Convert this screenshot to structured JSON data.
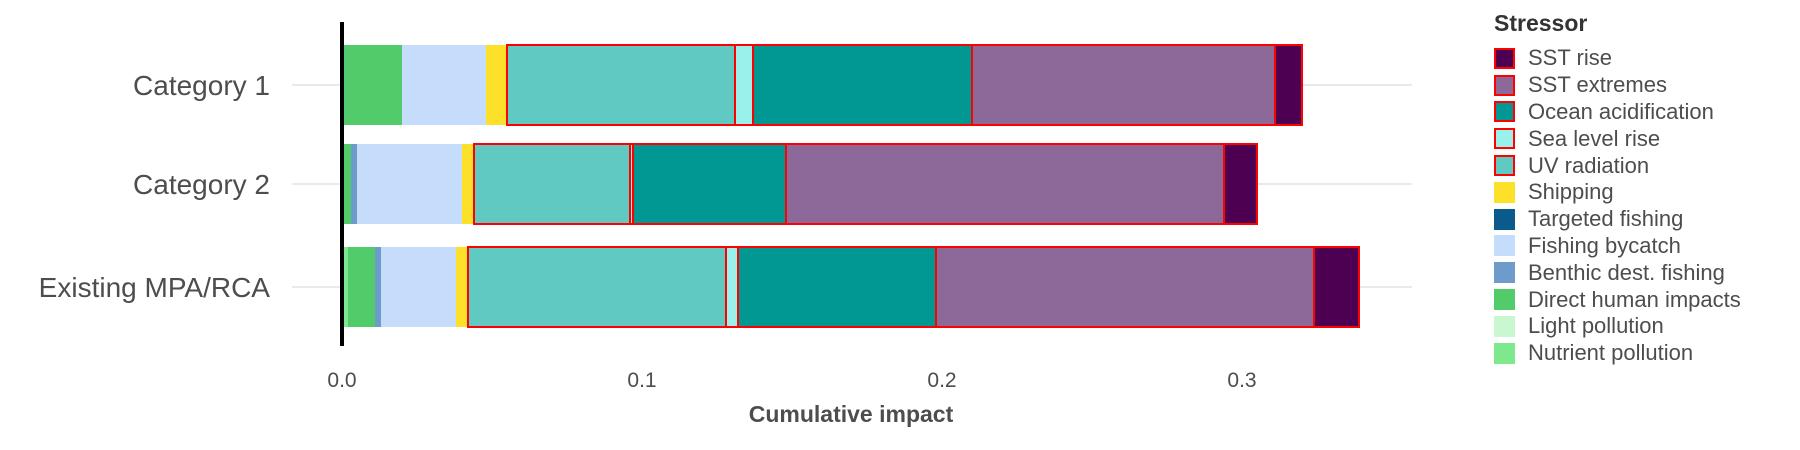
{
  "chart_data": {
    "type": "bar",
    "orientation": "horizontal",
    "stacked": true,
    "xlabel": "Cumulative impact",
    "ylabel": "",
    "xlim": [
      0,
      0.35
    ],
    "x_ticks": [
      0.0,
      0.1,
      0.2,
      0.3
    ],
    "x_tick_labels": [
      "0.0",
      "0.1",
      "0.2",
      "0.3"
    ],
    "grid": true,
    "legend_position": "right",
    "categories": [
      "Category 1",
      "Category 2",
      "Existing MPA/RCA"
    ],
    "legend_title": "Stressor",
    "series": [
      {
        "name": "Nutrient pollution",
        "color": "#7de88c",
        "values": [
          0.0,
          0.0,
          0.002
        ]
      },
      {
        "name": "Light pollution",
        "color": "#c8f7d0",
        "values": [
          0.0,
          0.0,
          0.0
        ]
      },
      {
        "name": "Direct human impacts",
        "color": "#52cc6b",
        "values": [
          0.02,
          0.003,
          0.009
        ]
      },
      {
        "name": "Benthic dest. fishing",
        "color": "#6d9bcb",
        "values": [
          0.0,
          0.002,
          0.002
        ]
      },
      {
        "name": "Fishing bycatch",
        "color": "#c5dcfb",
        "values": [
          0.028,
          0.035,
          0.025
        ]
      },
      {
        "name": "Targeted fishing",
        "color": "#0b5a8c",
        "values": [
          0.0,
          0.0,
          0.0
        ]
      },
      {
        "name": "Shipping",
        "color": "#fce02a",
        "values": [
          0.007,
          0.004,
          0.004
        ]
      },
      {
        "name": "UV radiation",
        "color": "#5fc9c2",
        "values": [
          0.076,
          0.052,
          0.086
        ]
      },
      {
        "name": "Sea level rise",
        "color": "#9af0ea",
        "values": [
          0.006,
          0.001,
          0.004
        ]
      },
      {
        "name": "Ocean acidification",
        "color": "#019893",
        "values": [
          0.073,
          0.051,
          0.066
        ]
      },
      {
        "name": "SST extremes",
        "color": "#8d6999",
        "values": [
          0.101,
          0.146,
          0.126
        ]
      },
      {
        "name": "SST rise",
        "color": "#4d0052",
        "values": [
          0.009,
          0.011,
          0.015
        ]
      }
    ],
    "highlight_outline_color": "#ff0000",
    "outlined_series": [
      "UV radiation",
      "Sea level rise",
      "Ocean acidification",
      "SST extremes",
      "SST rise"
    ],
    "legend_order": [
      "SST rise",
      "SST extremes",
      "Ocean acidification",
      "Sea level rise",
      "UV radiation",
      "Shipping",
      "Targeted fishing",
      "Fishing bycatch",
      "Benthic dest. fishing",
      "Direct human impacts",
      "Light pollution",
      "Nutrient pollution"
    ]
  }
}
